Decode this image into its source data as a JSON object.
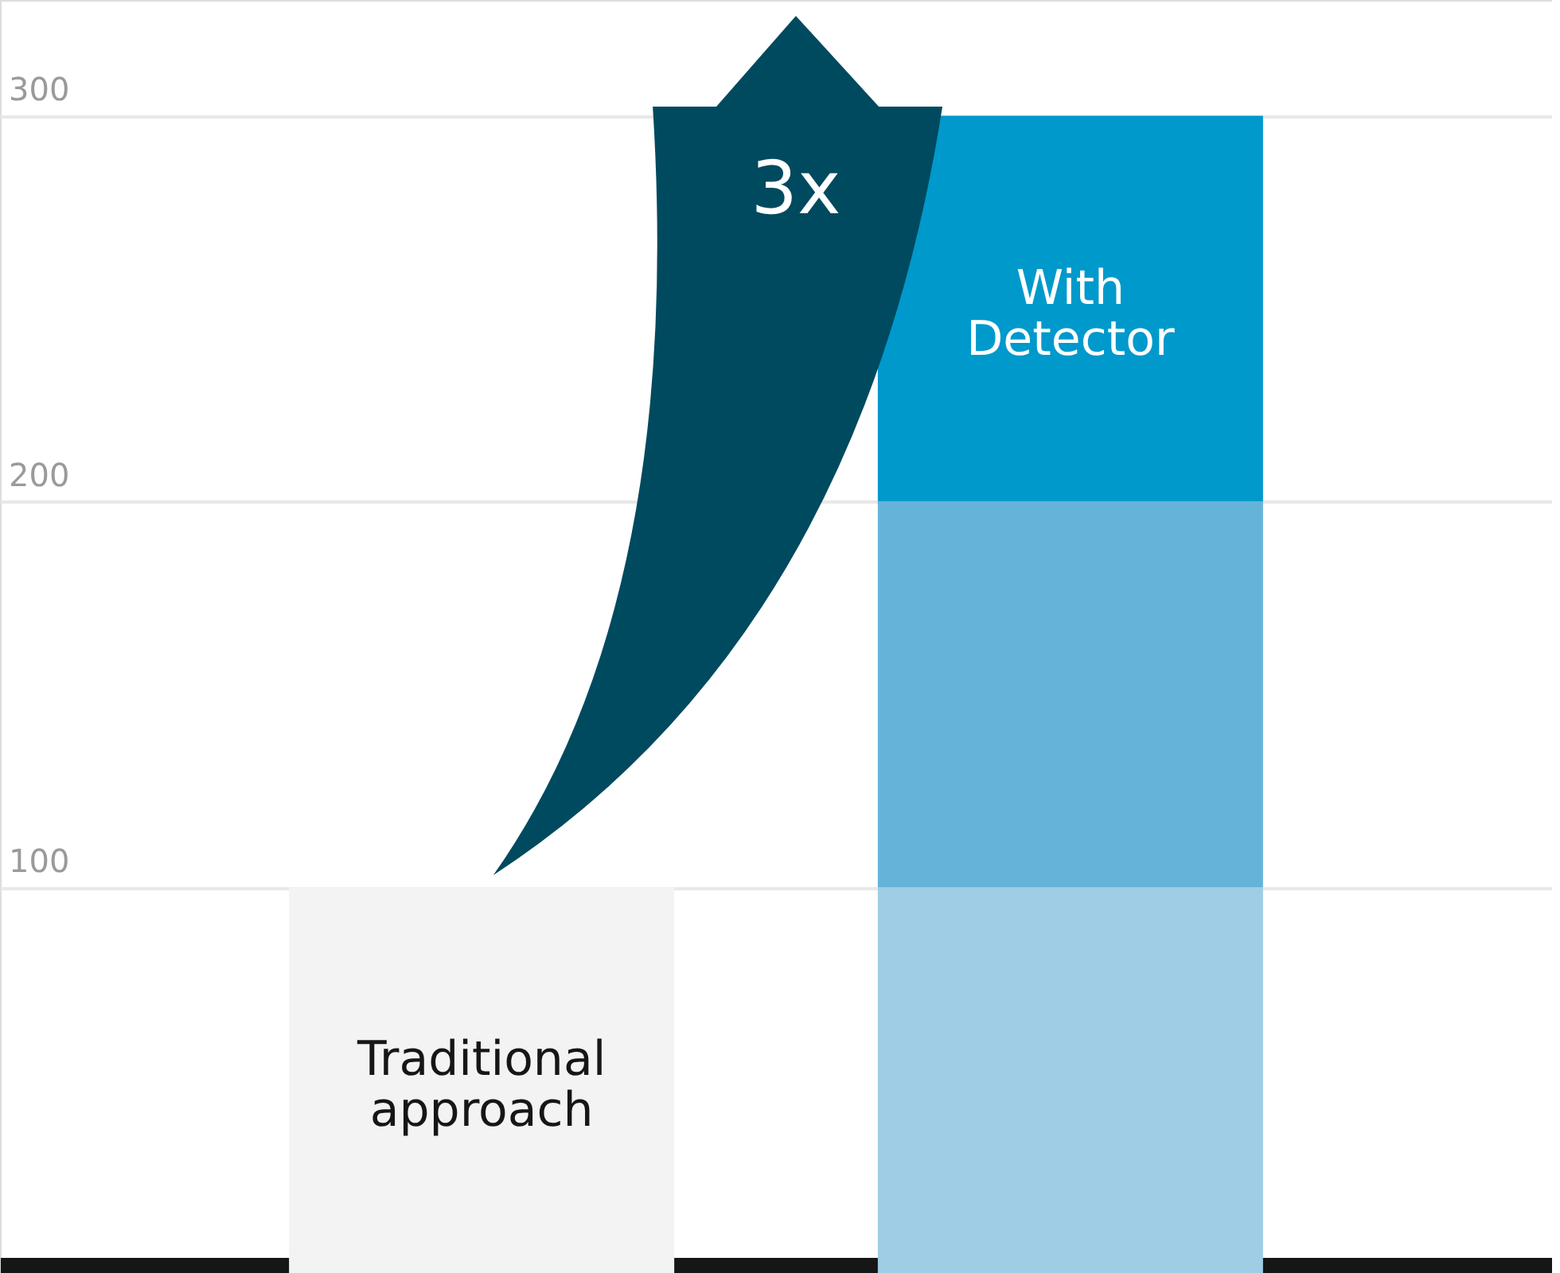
{
  "chart_data": {
    "type": "bar",
    "stacked": true,
    "categories": [
      "Traditional approach",
      "With Detector"
    ],
    "series": [
      {
        "colors": [
          "#f3f3f3",
          "#9ecde5"
        ],
        "values": [
          100,
          100
        ]
      },
      {
        "color": "#66b3d9",
        "values": [
          null,
          100
        ]
      },
      {
        "color": "#0099cc",
        "values": [
          null,
          100
        ]
      }
    ],
    "ylim": [
      0,
      330
    ],
    "yticks": [
      100,
      200,
      300
    ],
    "grid": "y",
    "tick_labels": "y",
    "annotations": [
      "3x"
    ]
  }
}
